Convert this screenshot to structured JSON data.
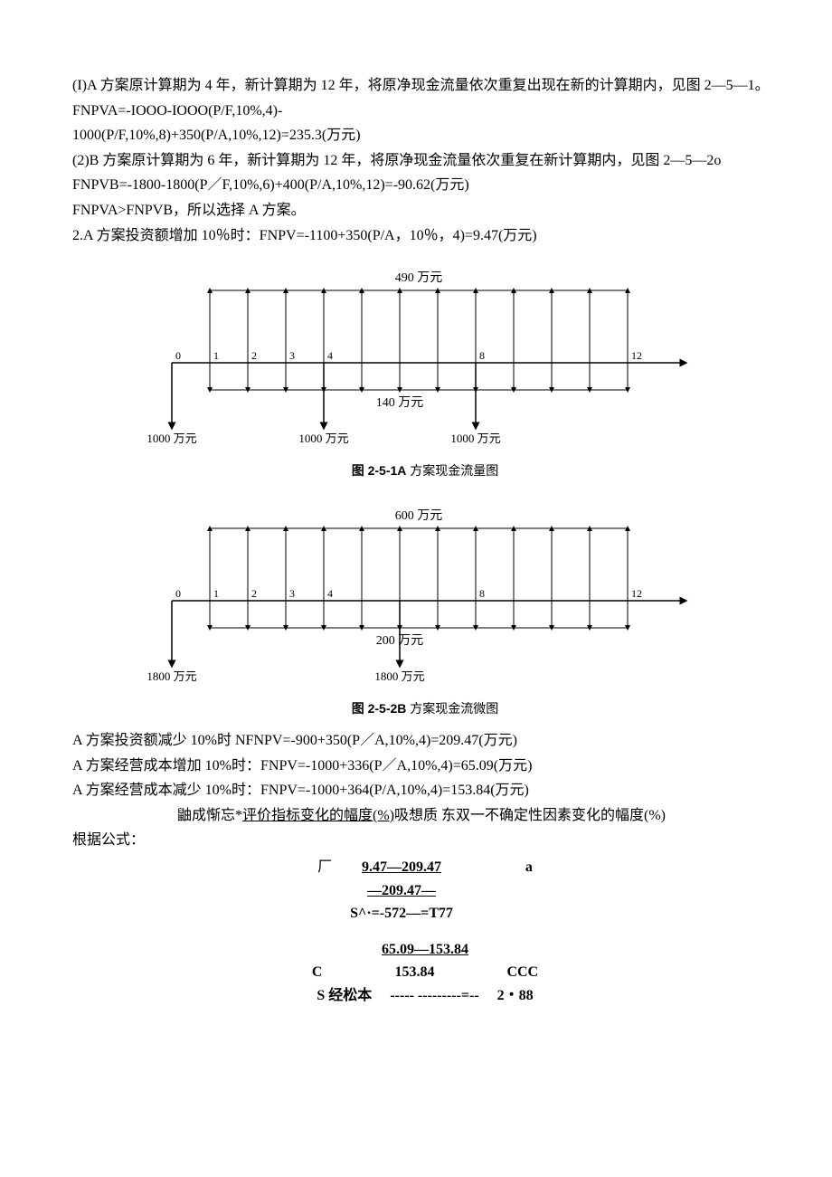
{
  "p1": "(I)A 方案原计算期为 4 年，新计算期为 12 年，将原净现金流量依次重复出现在新的计算期内，见图 2—5—1。",
  "p2": "FNPVA=-IOOO-IOOO(P/F,10%,4)-",
  "p3": "1000(P/F,10%,8)+350(P/A,10%,12)=235.3(万元)",
  "p4": "(2)B 方案原计算期为 6 年，新计算期为 12 年，将原净现金流量依次重复在新计算期内，见图 2—5—2o",
  "p5": "FNPVB=-1800-1800(P／F,10%,6)+400(P/A,10%,12)=-90.62(万元)",
  "p6": "FNPVA>FNPVB，所以选择 A 方案。",
  "p7": "2.A 方案投资额增加 10％时：FNPV=-1100+350(P/A，10％，4)=9.47(万元)",
  "diagram1": {
    "top_label": "490 万元",
    "mid_label": "140 万元",
    "bottom_labels": [
      "1000 万元",
      "1000 万元",
      "1000 万元"
    ],
    "axis_labels": [
      "0",
      "1",
      "2",
      "3",
      "4",
      "8",
      "12"
    ],
    "arrow_up_positions": [
      1,
      2,
      3,
      4,
      5,
      6,
      7,
      8,
      9,
      10,
      11,
      12
    ],
    "arrow_down_positions": [
      1,
      2,
      3,
      4,
      5,
      6,
      7,
      8,
      9,
      10,
      11,
      12
    ],
    "big_down_positions": [
      0,
      4,
      8
    ],
    "caption_bold": "图 2-5-1A",
    "caption_rest": " 方案现金流量图",
    "colors": {
      "line": "#000",
      "bg": "#fff"
    }
  },
  "diagram2": {
    "top_label": "600 万元",
    "mid_label": "200 万元",
    "bottom_labels": [
      "1800 万元",
      "1800 万元"
    ],
    "axis_labels": [
      "0",
      "1",
      "2",
      "3",
      "4",
      "8",
      "12"
    ],
    "arrow_up_positions": [
      1,
      2,
      3,
      4,
      5,
      6,
      7,
      8,
      9,
      10,
      11,
      12
    ],
    "arrow_down_positions": [
      1,
      2,
      3,
      4,
      5,
      6,
      7,
      8,
      9,
      10,
      11,
      12
    ],
    "big_down_positions": [
      0,
      6
    ],
    "caption_bold": "图 2-5-2B",
    "caption_rest": " 方案现金流微图",
    "colors": {
      "line": "#000",
      "bg": "#fff"
    }
  },
  "p8": "A 方案投资额减少 10%时 NFNPV=-900+350(P／A,10%,4)=209.47(万元)",
  "p9": "A 方案经营成本增加 10%时：FNPV=-1000+336(P／A,10%,4)=65.09(万元)",
  "p10": "A 方案经营成本减少 10%时：FNPV=-1000+364(P/A,10%,4)=153.84(万元)",
  "p11_prefix": "                             鼬成惭忘*",
  "p11_ul": "评价指标变化的幅度(%)",
  "p11_suffix": "吸想质 东双一不确定性因素变化的幅度(%)",
  "p12": "根据公式：",
  "sens1": {
    "left": "厂",
    "top": "9.47—209.47",
    "mid": "—209.47—",
    "bot": "S^·=-572—=T77",
    "right": "a"
  },
  "sens2": {
    "top": "65.09—153.84",
    "left": "C",
    "mid": "153.84",
    "right": "CCC",
    "bot_left": "S 经松本",
    "bot_mid": "----- ---------=--",
    "bot_right": "2・88"
  }
}
